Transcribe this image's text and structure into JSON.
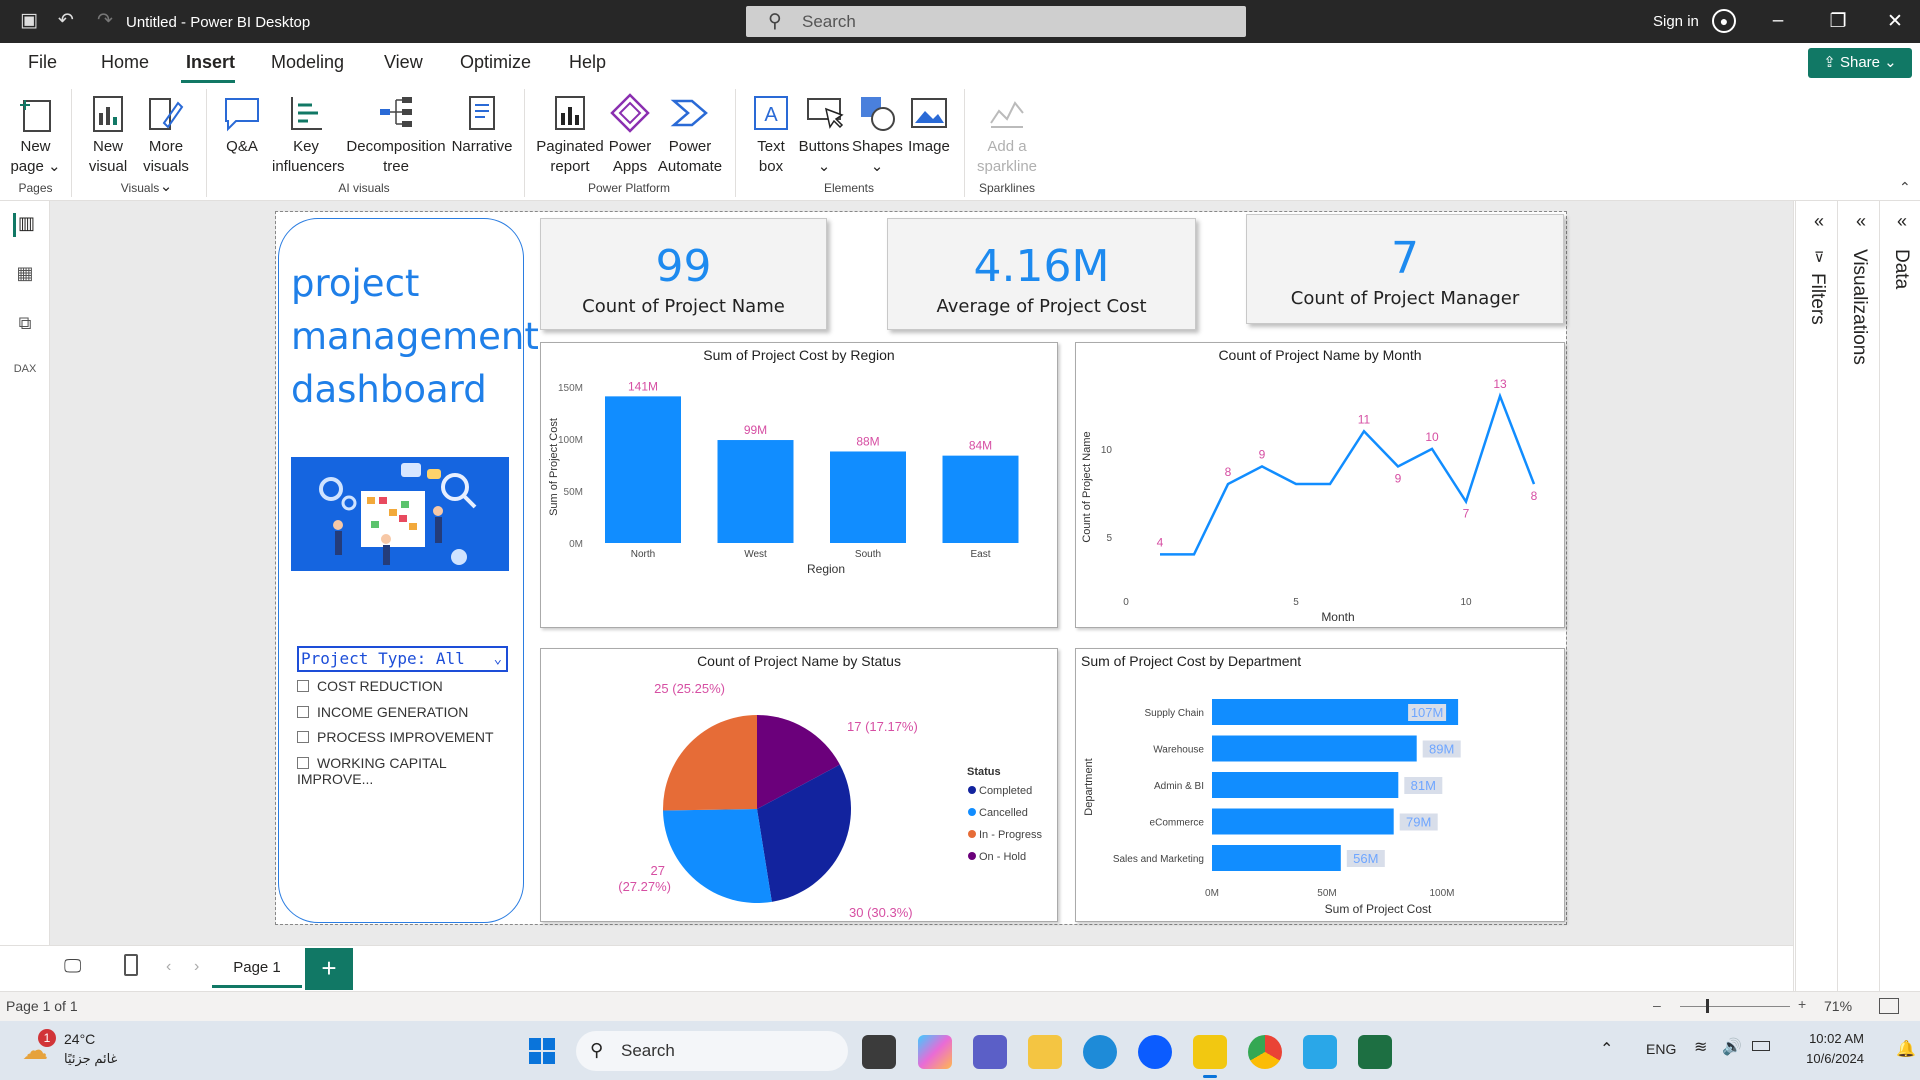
{
  "titlebar": {
    "title": "Untitled - Power BI Desktop",
    "search_placeholder": "Search",
    "sign_in": "Sign in"
  },
  "menu": {
    "tabs": [
      "File",
      "Home",
      "Insert",
      "Modeling",
      "View",
      "Optimize",
      "Help"
    ],
    "active": "Insert",
    "share": "Share"
  },
  "ribbon": {
    "buttons": {
      "new_page": [
        "New",
        "page"
      ],
      "new_visual": [
        "New",
        "visual"
      ],
      "more_visuals": [
        "More",
        "visuals"
      ],
      "qa": "Q&A",
      "key_influencers": [
        "Key",
        "influencers"
      ],
      "decomp_tree": [
        "Decomposition",
        "tree"
      ],
      "narrative": "Narrative",
      "paginated": [
        "Paginated",
        "report"
      ],
      "power_apps": [
        "Power",
        "Apps"
      ],
      "power_automate": [
        "Power",
        "Automate"
      ],
      "text_box": [
        "Text",
        "box"
      ],
      "buttons": "Buttons",
      "shapes": "Shapes",
      "image": "Image",
      "sparkline": [
        "Add a",
        "sparkline"
      ]
    },
    "groups": {
      "pages": "Pages",
      "visuals": "Visuals",
      "ai": "AI visuals",
      "platform": "Power Platform",
      "elements": "Elements",
      "sparklines": "Sparklines"
    }
  },
  "panels": {
    "filters": "Filters",
    "visualizations": "Visualizations",
    "data": "Data"
  },
  "dashboard": {
    "title_lines": [
      "project",
      "management",
      "dashboard"
    ],
    "slicer": {
      "header": "Project Type: All",
      "options": [
        "COST REDUCTION",
        "INCOME GENERATION",
        "PROCESS IMPROVEMENT",
        "WORKING CAPITAL IMPROVE..."
      ]
    },
    "cards": [
      {
        "value": "99",
        "label": "Count of Project Name"
      },
      {
        "value": "4.16M",
        "label": "Average of Project Cost"
      },
      {
        "value": "7",
        "label": "Count of Project Manager"
      }
    ]
  },
  "chart_data": [
    {
      "type": "bar",
      "title": "Sum of Project Cost by Region",
      "xlabel": "Region",
      "ylabel": "Sum of Project Cost",
      "categories": [
        "North",
        "West",
        "South",
        "East"
      ],
      "values": [
        141,
        99,
        88,
        84
      ],
      "data_labels": [
        "141M",
        "99M",
        "88M",
        "84M"
      ],
      "yticks": [
        "0M",
        "50M",
        "100M",
        "150M"
      ],
      "ylim": [
        0,
        150
      ],
      "color": "#118DFF",
      "label_color": "#D64FA3"
    },
    {
      "type": "line",
      "title": "Count of Project Name by Month",
      "xlabel": "Month",
      "ylabel": "Count of Project Name",
      "x": [
        1,
        2,
        3,
        4,
        5,
        6,
        7,
        8,
        9,
        10,
        11,
        12,
        13
      ],
      "values": [
        4,
        4,
        8,
        9,
        8,
        8,
        11,
        9,
        10,
        7,
        13,
        8,
        null
      ],
      "labeled": [
        4,
        null,
        8,
        9,
        null,
        null,
        11,
        9,
        10,
        7,
        13,
        8
      ],
      "xticks": [
        "0",
        "5",
        "10"
      ],
      "yticks": [
        "5",
        "10"
      ],
      "color": "#118DFF",
      "label_color": "#D64FA3"
    },
    {
      "type": "pie",
      "title": "Count of Project Name by Status",
      "legend_title": "Status",
      "labels": [
        "Completed",
        "Cancelled",
        "In - Progress",
        "On - Hold"
      ],
      "values": [
        30,
        27,
        25,
        17
      ],
      "slice_labels": [
        "30 (30.3%)",
        "27 (27.27%)",
        "25 (25.25%)",
        "17 (17.17%)"
      ],
      "colors": [
        "#12239E",
        "#118DFF",
        "#E66C37",
        "#6B007B"
      ]
    },
    {
      "type": "bar",
      "orientation": "horizontal",
      "title": "Sum of Project Cost by Department",
      "xlabel": "Sum of Project Cost",
      "ylabel": "Department",
      "categories": [
        "Supply Chain",
        "Warehouse",
        "Admin & BI",
        "eCommerce",
        "Sales and Marketing"
      ],
      "values": [
        107,
        89,
        81,
        79,
        56
      ],
      "data_labels": [
        "107M",
        "89M",
        "81M",
        "79M",
        "56M"
      ],
      "xticks": [
        "0M",
        "50M",
        "100M"
      ],
      "color": "#118DFF"
    }
  ],
  "pagebar": {
    "page_tab": "Page 1",
    "add": "+"
  },
  "status": {
    "page": "Page 1 of 1",
    "zoom": "71%"
  },
  "taskbar": {
    "weather_temp": "24°C",
    "weather_desc": "غائم جزئيًا",
    "search": "Search",
    "lang": "ENG",
    "time": "10:02 AM",
    "date": "10/6/2024",
    "notif": "1"
  }
}
